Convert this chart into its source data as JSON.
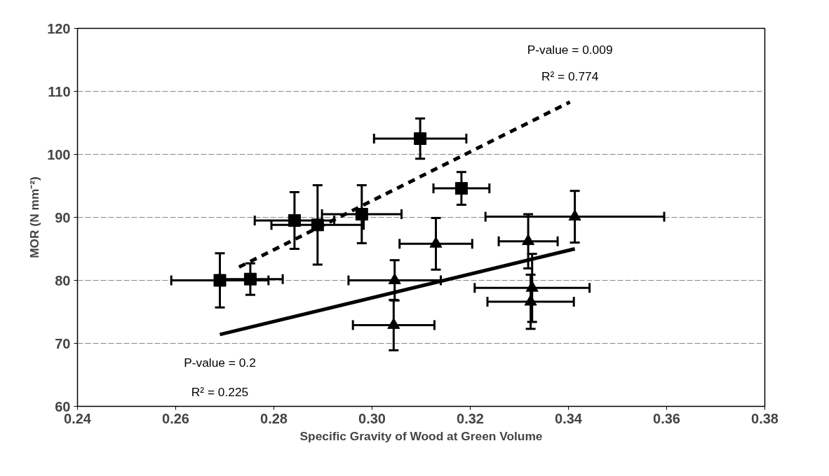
{
  "chart_data": {
    "type": "scatter",
    "xlabel": "Specific Gravity of Wood at Green Volume",
    "ylabel": "MOR (N mm⁻²)",
    "xlim": [
      0.24,
      0.38
    ],
    "xticks": [
      {
        "value": 0.24,
        "label": "0.24"
      },
      {
        "value": 0.26,
        "label": "0.26"
      },
      {
        "value": 0.28,
        "label": "0.28"
      },
      {
        "value": 0.3,
        "label": "0.30"
      },
      {
        "value": 0.32,
        "label": "0.32"
      },
      {
        "value": 0.34,
        "label": "0.34"
      },
      {
        "value": 0.36,
        "label": "0.36"
      },
      {
        "value": 0.38,
        "label": "0.38"
      }
    ],
    "ylim": [
      60,
      120
    ],
    "yticks": [
      60,
      70,
      80,
      90,
      100,
      110,
      120
    ],
    "grid": "y",
    "series": [
      {
        "marker": "square",
        "color": "#000000",
        "x": [
          0.269,
          0.2752,
          0.2842,
          0.2889,
          0.2979,
          0.3098,
          0.3182
        ],
        "values": [
          80.0,
          80.2,
          89.5,
          88.8,
          90.5,
          102.5,
          94.6
        ],
        "errors": [
          4.3,
          2.5,
          4.5,
          6.3,
          4.6,
          3.2,
          2.6
        ],
        "xerrors": [
          0.0099,
          0.0066,
          0.0081,
          0.0094,
          0.0081,
          0.0094,
          0.0057
        ]
      },
      {
        "marker": "triangle",
        "color": "#000000",
        "x": [
          0.3046,
          0.3044,
          0.313,
          0.3318,
          0.3413,
          0.3326,
          0.3323
        ],
        "values": [
          80.0,
          72.9,
          85.8,
          86.2,
          90.1,
          78.8,
          76.6
        ],
        "errors": [
          3.2,
          4.0,
          4.1,
          4.3,
          4.1,
          5.4,
          4.3
        ],
        "xerrors": [
          0.0094,
          0.0083,
          0.0074,
          0.006,
          0.0182,
          0.0117,
          0.0088
        ]
      },
      {
        "type": "line",
        "color": "#000000",
        "line_style": "dashed",
        "x": [
          0.2729,
          0.3403
        ],
        "values": [
          82.1,
          108.3
        ]
      },
      {
        "type": "line",
        "color": "#000000",
        "line_style": "solid",
        "x": [
          0.269,
          0.3413
        ],
        "values": [
          71.4,
          85.0
        ]
      }
    ],
    "annotations": [
      "P-value = 0.009",
      "R² = 0.774",
      "P-value = 0.2",
      "R² = 0.225"
    ]
  }
}
